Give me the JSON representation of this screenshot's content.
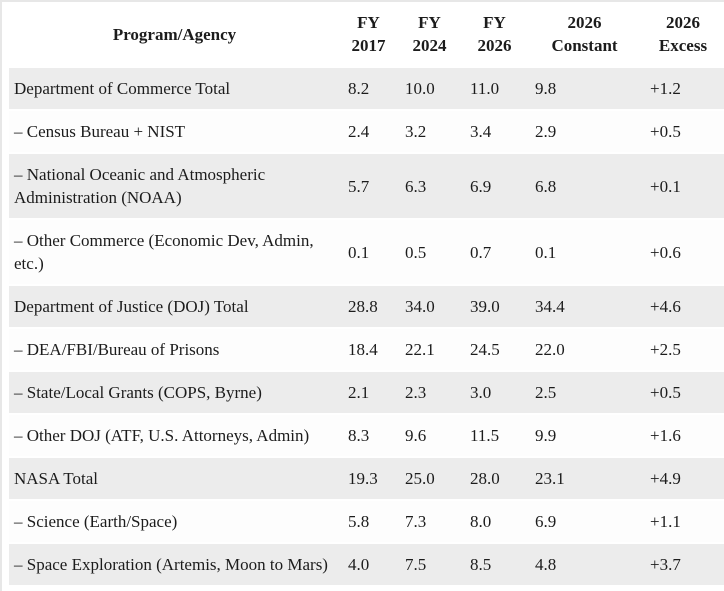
{
  "chart_data": {
    "type": "table",
    "columns": [
      "Program/Agency",
      "FY 2017",
      "FY 2024",
      "FY 2026",
      "2026 Constant",
      "2026 Excess"
    ],
    "rows": [
      [
        "Department of Commerce Total",
        "8.2",
        "10.0",
        "11.0",
        "9.8",
        "+1.2"
      ],
      [
        "– Census Bureau + NIST",
        "2.4",
        "3.2",
        "3.4",
        "2.9",
        "+0.5"
      ],
      [
        "– National Oceanic and Atmospheric Administration (NOAA)",
        "5.7",
        "6.3",
        "6.9",
        "6.8",
        "+0.1"
      ],
      [
        "– Other Commerce (Economic Dev, Admin, etc.)",
        "0.1",
        "0.5",
        "0.7",
        "0.1",
        "+0.6"
      ],
      [
        "Department of Justice (DOJ) Total",
        "28.8",
        "34.0",
        "39.0",
        "34.4",
        "+4.6"
      ],
      [
        "– DEA/FBI/Bureau of Prisons",
        "18.4",
        "22.1",
        "24.5",
        "22.0",
        "+2.5"
      ],
      [
        "– State/Local Grants (COPS, Byrne)",
        "2.1",
        "2.3",
        "3.0",
        "2.5",
        "+0.5"
      ],
      [
        "– Other DOJ (ATF, U.S. Attorneys, Admin)",
        "8.3",
        "9.6",
        "11.5",
        "9.9",
        "+1.6"
      ],
      [
        "NASA Total",
        "19.3",
        "25.0",
        "28.0",
        "23.1",
        "+4.9"
      ],
      [
        "– Science (Earth/Space)",
        "5.8",
        "7.3",
        "8.0",
        "6.9",
        "+1.1"
      ],
      [
        "– Space Exploration (Artemis, Moon to Mars)",
        "4.0",
        "7.5",
        "8.5",
        "4.8",
        "+3.7"
      ]
    ]
  },
  "header": {
    "program": "Program/Agency",
    "cols": [
      {
        "l1": "FY",
        "l2": "2017"
      },
      {
        "l1": "FY",
        "l2": "2024"
      },
      {
        "l1": "FY",
        "l2": "2026"
      },
      {
        "l1": "2026",
        "l2": "Constant"
      },
      {
        "l1": "2026",
        "l2": "Excess"
      }
    ]
  },
  "colors": {
    "stripe_row": "#ececec",
    "white_row": "#fdfdfd",
    "text": "#1c1c1c",
    "page_border": "#e7e7e7"
  }
}
